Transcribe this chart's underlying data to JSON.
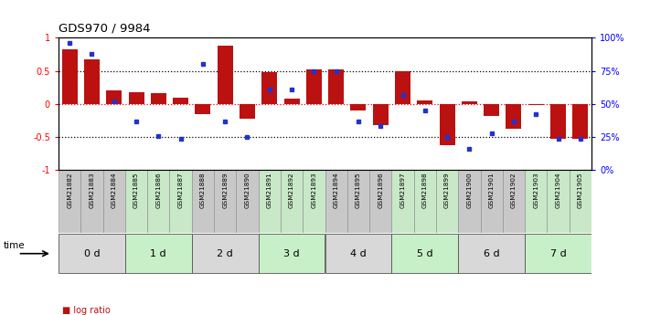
{
  "title": "GDS970 / 9984",
  "samples": [
    "GSM21882",
    "GSM21883",
    "GSM21884",
    "GSM21885",
    "GSM21886",
    "GSM21887",
    "GSM21888",
    "GSM21889",
    "GSM21890",
    "GSM21891",
    "GSM21892",
    "GSM21893",
    "GSM21894",
    "GSM21895",
    "GSM21896",
    "GSM21897",
    "GSM21898",
    "GSM21899",
    "GSM21900",
    "GSM21901",
    "GSM21902",
    "GSM21903",
    "GSM21904",
    "GSM21905"
  ],
  "log_ratio": [
    0.82,
    0.68,
    0.2,
    0.18,
    0.17,
    0.1,
    -0.15,
    0.88,
    -0.22,
    0.48,
    0.08,
    0.52,
    0.52,
    -0.1,
    -0.32,
    0.5,
    0.05,
    -0.62,
    0.04,
    -0.18,
    -0.38,
    -0.02,
    -0.52,
    -0.52
  ],
  "percentile_rank": [
    96,
    88,
    52,
    37,
    26,
    24,
    80,
    37,
    25,
    61,
    61,
    75,
    75,
    37,
    33,
    57,
    45,
    25,
    16,
    28,
    37,
    42,
    24,
    24
  ],
  "time_groups": [
    {
      "label": "0 d",
      "start": 0,
      "end": 3,
      "color": "#d8d8d8"
    },
    {
      "label": "1 d",
      "start": 3,
      "end": 6,
      "color": "#c8f0c8"
    },
    {
      "label": "2 d",
      "start": 6,
      "end": 9,
      "color": "#d8d8d8"
    },
    {
      "label": "3 d",
      "start": 9,
      "end": 12,
      "color": "#c8f0c8"
    },
    {
      "label": "4 d",
      "start": 12,
      "end": 15,
      "color": "#d8d8d8"
    },
    {
      "label": "5 d",
      "start": 15,
      "end": 18,
      "color": "#c8f0c8"
    },
    {
      "label": "6 d",
      "start": 18,
      "end": 21,
      "color": "#d8d8d8"
    },
    {
      "label": "7 d",
      "start": 21,
      "end": 24,
      "color": "#c8f0c8"
    }
  ],
  "sample_bg_gray": "#c8c8c8",
  "sample_bg_green": "#c8e8c8",
  "bar_color": "#bb1111",
  "dot_color": "#2233cc",
  "ylim": [
    -1,
    1
  ],
  "yticks_left": [
    -1,
    -0.5,
    0,
    0.5,
    1
  ],
  "yticks_right": [
    0,
    25,
    50,
    75,
    100
  ]
}
